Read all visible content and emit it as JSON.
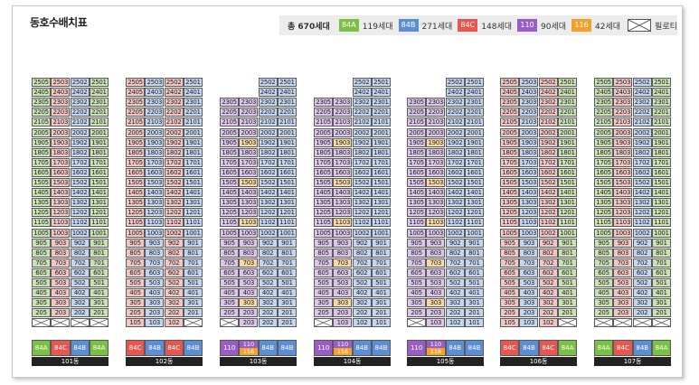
{
  "title": "동호수배치표",
  "legend": {
    "total": "총 670세대",
    "items": [
      {
        "type": "84A",
        "count": "119세대",
        "color": "#7ac143"
      },
      {
        "type": "84B",
        "count": "271세대",
        "color": "#5b8ed6"
      },
      {
        "type": "84C",
        "count": "148세대",
        "color": "#e8564f"
      },
      {
        "type": "110",
        "count": "90세대",
        "color": "#9a5cc6"
      },
      {
        "type": "116",
        "count": "42세대",
        "color": "#f2a12b"
      }
    ],
    "pilotis_label": "필로티"
  },
  "colors": {
    "84A": "#c9e3b2",
    "84B": "#c3d6f2",
    "84C": "#f3c6c3",
    "110": "#dcc6eb",
    "116": "#f8d9a6"
  },
  "bar_colors": {
    "84A": "#7ac143",
    "84B": "#5b8ed6",
    "84C": "#e8564f",
    "110": "#9a5cc6",
    "116": "#f2a12b"
  },
  "buildings": [
    {
      "name": "101동",
      "top_floor": [
        25,
        25,
        25,
        25
      ],
      "columns": [
        {
          "line": "05",
          "type": "84A",
          "bar": "84A"
        },
        {
          "line": "03",
          "type": "84C",
          "bar": "84C"
        },
        {
          "line": "02",
          "type": "84B",
          "bar": "84B"
        },
        {
          "line": "01",
          "type": "84A",
          "bar": "84A"
        }
      ],
      "ground_floor": [
        "pilotis",
        "pilotis",
        "pilotis",
        "pilotis"
      ]
    },
    {
      "name": "102동",
      "top_floor": [
        25,
        25,
        25,
        25
      ],
      "columns": [
        {
          "line": "05",
          "type": "84C",
          "bar": "84C"
        },
        {
          "line": "03",
          "type": "84B",
          "bar": "84B"
        },
        {
          "line": "02",
          "type": "84C",
          "bar": "84C"
        },
        {
          "line": "01",
          "type": "84B",
          "bar": "84B"
        }
      ],
      "ground_floor": [
        "105",
        "103",
        "102",
        "pilotis"
      ]
    },
    {
      "name": "103동",
      "top_floor": [
        23,
        23,
        25,
        25
      ],
      "columns": [
        {
          "line": "05",
          "type": "110",
          "bar": "110"
        },
        {
          "line": "03",
          "type": "mix",
          "bar": "mix"
        },
        {
          "line": "02",
          "type": "84B",
          "bar": "84B"
        },
        {
          "line": "01",
          "type": "84B",
          "bar": "84B"
        }
      ],
      "ground_floor": [
        "pilotis",
        "203",
        "202",
        "201"
      ]
    },
    {
      "name": "104동",
      "top_floor": [
        23,
        23,
        25,
        25
      ],
      "columns": [
        {
          "line": "05",
          "type": "110",
          "bar": "110"
        },
        {
          "line": "03",
          "type": "mix",
          "bar": "mix"
        },
        {
          "line": "02",
          "type": "84B",
          "bar": "84B"
        },
        {
          "line": "01",
          "type": "84B",
          "bar": "84B"
        }
      ],
      "ground_floor": [
        "pilotis",
        "103",
        "102",
        "101"
      ]
    },
    {
      "name": "105동",
      "top_floor": [
        23,
        23,
        25,
        25
      ],
      "columns": [
        {
          "line": "05",
          "type": "110",
          "bar": "110"
        },
        {
          "line": "03",
          "type": "mix",
          "bar": "mix"
        },
        {
          "line": "02",
          "type": "84B",
          "bar": "84B"
        },
        {
          "line": "01",
          "type": "84B",
          "bar": "84B"
        }
      ],
      "ground_floor": [
        "pilotis",
        "103",
        "102",
        "101"
      ]
    },
    {
      "name": "106동",
      "top_floor": [
        25,
        25,
        25,
        25
      ],
      "columns": [
        {
          "line": "05",
          "type": "84C",
          "bar": "84C"
        },
        {
          "line": "03",
          "type": "84B",
          "bar": "84B"
        },
        {
          "line": "02",
          "type": "84C",
          "bar": "84C"
        },
        {
          "line": "01",
          "type": "84A",
          "bar": "84A"
        }
      ],
      "ground_floor": [
        "105",
        "103",
        "102",
        "pilotis"
      ]
    },
    {
      "name": "107동",
      "top_floor": [
        25,
        25,
        25,
        25
      ],
      "columns": [
        {
          "line": "05",
          "type": "84A",
          "bar": "84A"
        },
        {
          "line": "03",
          "type": "84C",
          "bar": "84C"
        },
        {
          "line": "02",
          "type": "84B",
          "bar": "84B"
        },
        {
          "line": "01",
          "type": "84A",
          "bar": "84A"
        }
      ],
      "ground_floor": [
        "pilotis",
        "pilotis",
        "pilotis",
        "pilotis"
      ]
    }
  ],
  "mix_floors_116": [
    19,
    15,
    11,
    7,
    3
  ],
  "mix_bar_labels": {
    "top": "110",
    "bottom": "116"
  }
}
